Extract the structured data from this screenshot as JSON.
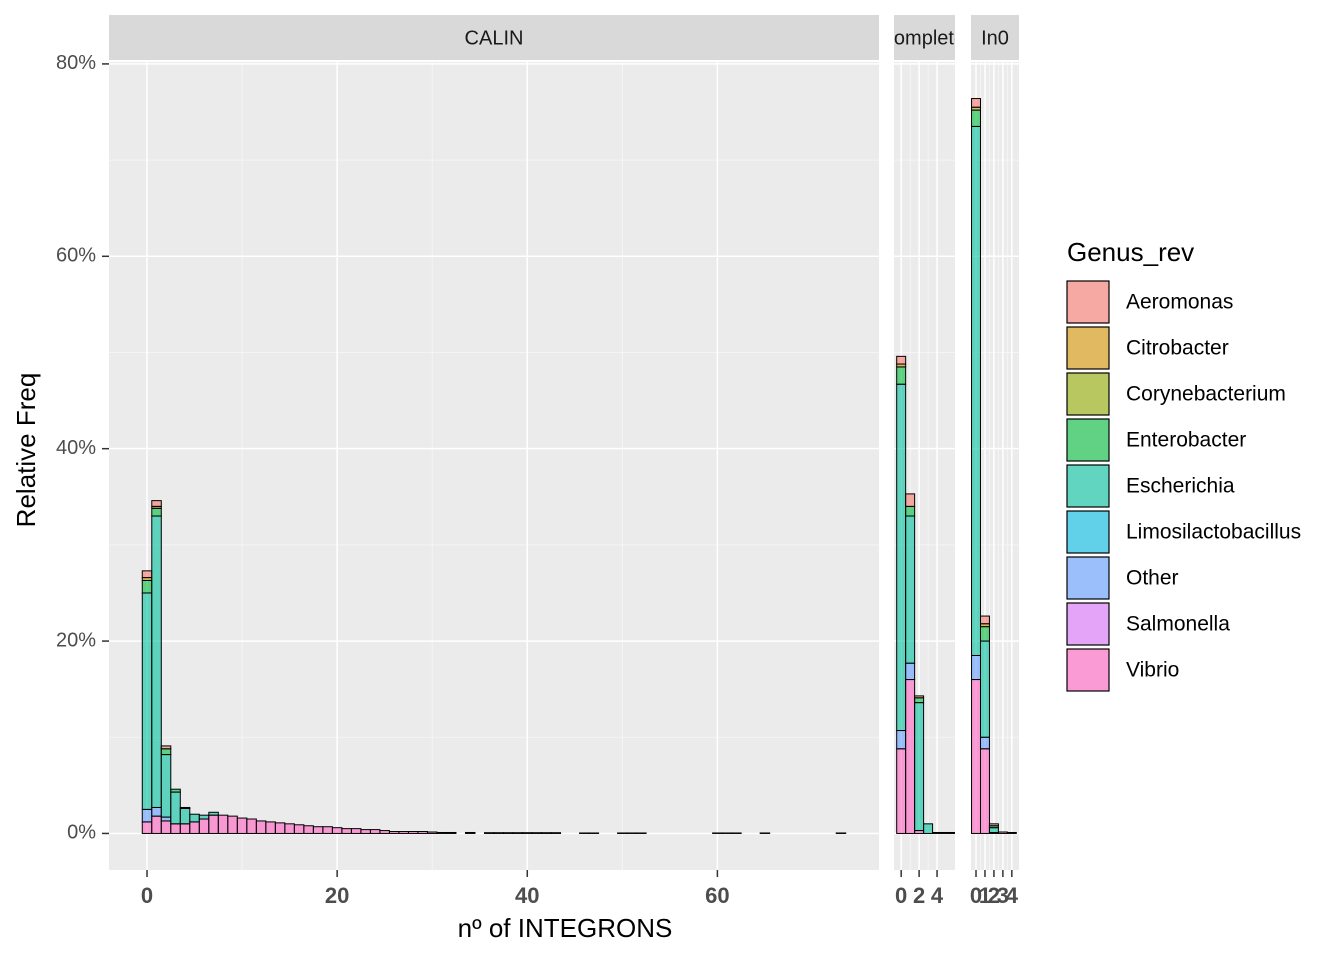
{
  "chart_data": {
    "type": "histogram",
    "y_label": "Relative Freq",
    "x_label": "nº of INTEGRONS",
    "legend_title": "Genus_rev",
    "alpha": 0.6,
    "ylim": [
      -3.8,
      80.2
    ],
    "yticks": [
      {
        "value": 0,
        "label": "0%"
      },
      {
        "value": 20,
        "label": "20%"
      },
      {
        "value": 40,
        "label": "40%"
      },
      {
        "value": 60,
        "label": "60%"
      },
      {
        "value": 80,
        "label": "80%"
      }
    ],
    "series": [
      {
        "name": "Aeromonas",
        "color": "#F8766D"
      },
      {
        "name": "Citrobacter",
        "color": "#D39200"
      },
      {
        "name": "Corynebacterium",
        "color": "#93AA00"
      },
      {
        "name": "Enterobacter",
        "color": "#00BA38"
      },
      {
        "name": "Escherichia",
        "color": "#00C19F"
      },
      {
        "name": "Limosilactobacillus",
        "color": "#00B9E3"
      },
      {
        "name": "Other",
        "color": "#619CFF"
      },
      {
        "name": "Salmonella",
        "color": "#DB72FB"
      },
      {
        "name": "Vibrio",
        "color": "#FF61C3"
      }
    ],
    "panels": [
      {
        "strip": "CALIN",
        "xlim": [
          -4,
          77
        ],
        "xticks": [
          0,
          20,
          40,
          60
        ],
        "x": [
          0,
          1,
          2,
          3,
          4,
          5,
          6,
          7,
          8,
          9,
          10,
          11,
          12,
          13,
          14,
          15,
          16,
          17,
          18,
          19,
          20,
          21,
          22,
          23,
          24,
          25,
          26,
          27,
          28,
          29,
          30,
          31,
          32,
          34,
          36,
          37,
          38,
          39,
          40,
          41,
          42,
          43,
          46,
          47,
          50,
          51,
          52,
          60,
          61,
          62,
          65,
          73
        ],
        "values": {
          "Vibrio": [
            1.2,
            1.8,
            1.3,
            1.0,
            1.0,
            1.2,
            1.5,
            1.9,
            1.9,
            1.8,
            1.6,
            1.5,
            1.3,
            1.2,
            1.1,
            1.0,
            0.9,
            0.8,
            0.7,
            0.7,
            0.6,
            0.5,
            0.5,
            0.4,
            0.4,
            0.3,
            0.2,
            0.2,
            0.2,
            0.2,
            0.15,
            0.1,
            0.1,
            0.1,
            0.08,
            0.08,
            0.08,
            0.08,
            0.08,
            0.08,
            0.08,
            0.08,
            0.05,
            0.05,
            0.05,
            0.05,
            0.05,
            0.05,
            0.05,
            0.05,
            0.05,
            0.05
          ],
          "Other": [
            1.3,
            0.9,
            0.4,
            0,
            0,
            0,
            0,
            0,
            0,
            0,
            0,
            0,
            0,
            0,
            0,
            0,
            0,
            0,
            0,
            0,
            0,
            0,
            0,
            0,
            0,
            0,
            0,
            0,
            0,
            0,
            0,
            0,
            0,
            0,
            0,
            0,
            0,
            0,
            0,
            0,
            0,
            0,
            0,
            0,
            0,
            0,
            0,
            0,
            0,
            0,
            0,
            0
          ],
          "Escherichia": [
            22.5,
            30.3,
            6.5,
            3.3,
            1.6,
            0.8,
            0.4,
            0.3,
            0,
            0,
            0,
            0,
            0,
            0,
            0,
            0,
            0,
            0,
            0,
            0,
            0,
            0,
            0,
            0,
            0,
            0,
            0,
            0,
            0,
            0,
            0,
            0,
            0,
            0,
            0,
            0,
            0,
            0,
            0,
            0,
            0,
            0,
            0,
            0,
            0,
            0,
            0,
            0,
            0,
            0,
            0,
            0
          ],
          "Enterobacter": [
            1.3,
            0.8,
            0.6,
            0.3,
            0.1,
            0,
            0,
            0,
            0,
            0,
            0,
            0,
            0,
            0,
            0,
            0,
            0,
            0,
            0,
            0,
            0,
            0,
            0,
            0,
            0,
            0,
            0,
            0,
            0,
            0,
            0,
            0,
            0,
            0,
            0,
            0,
            0,
            0,
            0,
            0,
            0,
            0,
            0,
            0,
            0,
            0,
            0,
            0,
            0,
            0,
            0,
            0
          ],
          "Citrobacter": [
            0.3,
            0.2,
            0,
            0,
            0,
            0,
            0,
            0,
            0,
            0,
            0,
            0,
            0,
            0,
            0,
            0,
            0,
            0,
            0,
            0,
            0,
            0,
            0,
            0,
            0,
            0,
            0,
            0,
            0,
            0,
            0,
            0,
            0,
            0,
            0,
            0,
            0,
            0,
            0,
            0,
            0,
            0,
            0,
            0,
            0,
            0,
            0,
            0,
            0,
            0,
            0,
            0
          ],
          "Aeromonas": [
            0.7,
            0.6,
            0.3,
            0,
            0,
            0,
            0,
            0,
            0,
            0,
            0,
            0,
            0,
            0,
            0,
            0,
            0,
            0,
            0,
            0,
            0,
            0,
            0,
            0,
            0,
            0,
            0,
            0,
            0,
            0,
            0,
            0,
            0,
            0,
            0,
            0,
            0,
            0,
            0,
            0,
            0,
            0,
            0,
            0,
            0,
            0,
            0,
            0,
            0,
            0,
            0,
            0
          ]
        }
      },
      {
        "strip": "complete",
        "xlim": [
          -0.8,
          6
        ],
        "xticks": [
          0,
          2,
          4
        ],
        "x": [
          0,
          1,
          2,
          3,
          4,
          5,
          6
        ],
        "values": {
          "Vibrio": [
            8.8,
            16,
            0.3,
            0,
            0.1,
            0.1,
            0.1
          ],
          "Other": [
            1.9,
            1.7,
            0,
            0,
            0,
            0,
            0
          ],
          "Escherichia": [
            36,
            15.3,
            13.3,
            1.0,
            0,
            0,
            0
          ],
          "Enterobacter": [
            1.8,
            1.0,
            0.5,
            0,
            0,
            0,
            0
          ],
          "Citrobacter": [
            0.3,
            0,
            0,
            0,
            0,
            0,
            0
          ],
          "Aeromonas": [
            0.8,
            1.3,
            0.2,
            0,
            0,
            0,
            0
          ]
        }
      },
      {
        "strip": "In0",
        "xlim": [
          -0.56,
          4.8
        ],
        "xticks": [
          0,
          1,
          2,
          3,
          4
        ],
        "x": [
          0,
          1,
          2,
          3,
          4
        ],
        "values": {
          "Vibrio": [
            16,
            8.8,
            0.1,
            0.15,
            0.1
          ],
          "Other": [
            2.5,
            1.2,
            0,
            0,
            0
          ],
          "Escherichia": [
            55,
            10,
            0.5,
            0,
            0
          ],
          "Enterobacter": [
            1.7,
            1.5,
            0.2,
            0,
            0
          ],
          "Citrobacter": [
            0.3,
            0.3,
            0,
            0,
            0
          ],
          "Aeromonas": [
            0.9,
            0.8,
            0.2,
            0,
            0
          ]
        }
      }
    ]
  }
}
